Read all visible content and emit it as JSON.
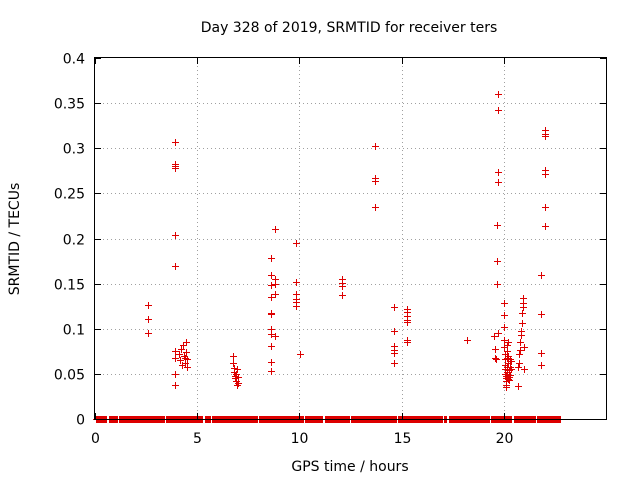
{
  "chart_data": {
    "type": "scatter",
    "title": "Day 328 of 2019, SRMTID for receiver ters",
    "xlabel": "GPS time / hours",
    "ylabel": "SRMTID / TECUs",
    "xlim": [
      0,
      25
    ],
    "ylim": [
      0,
      0.4
    ],
    "xticks": [
      0,
      5,
      10,
      15,
      20
    ],
    "xtick_labels": [
      "0",
      "5",
      "10",
      "15",
      "20"
    ],
    "yticks": [
      0,
      0.05,
      0.1,
      0.15,
      0.2,
      0.25,
      0.3,
      0.35,
      0.4
    ],
    "ytick_labels": [
      "0",
      "0.05",
      "0.1",
      "0.15",
      "0.2",
      "0.25",
      "0.3",
      "0.35",
      "0.4"
    ],
    "grid": true,
    "marker": "+",
    "series": [
      {
        "name": "SRMTID",
        "color": "#dd0000",
        "zero_baseline": {
          "x_start": 0.05,
          "x_end": 22.75,
          "step": 0.05,
          "gaps": [
            [
              0.6,
              0.65
            ],
            [
              5.3,
              5.35
            ],
            [
              11.15,
              11.2
            ],
            [
              17.2,
              17.25
            ],
            [
              20.4,
              20.45
            ]
          ]
        },
        "points": [
          [
            2.6,
            0.126
          ],
          [
            2.6,
            0.111
          ],
          [
            2.6,
            0.095
          ],
          [
            3.9,
            0.307
          ],
          [
            3.9,
            0.282
          ],
          [
            3.9,
            0.278
          ],
          [
            3.9,
            0.28
          ],
          [
            3.9,
            0.204
          ],
          [
            3.9,
            0.17
          ],
          [
            3.9,
            0.075
          ],
          [
            3.9,
            0.068
          ],
          [
            3.9,
            0.05
          ],
          [
            3.9,
            0.038
          ],
          [
            4.1,
            0.072
          ],
          [
            4.15,
            0.065
          ],
          [
            4.2,
            0.078
          ],
          [
            4.25,
            0.06
          ],
          [
            4.3,
            0.082
          ],
          [
            4.35,
            0.07
          ],
          [
            4.4,
            0.068
          ],
          [
            4.4,
            0.062
          ],
          [
            4.45,
            0.085
          ],
          [
            4.45,
            0.074
          ],
          [
            4.5,
            0.066
          ],
          [
            4.5,
            0.058
          ],
          [
            6.75,
            0.07
          ],
          [
            6.75,
            0.062
          ],
          [
            6.8,
            0.057
          ],
          [
            6.8,
            0.052
          ],
          [
            6.85,
            0.048
          ],
          [
            6.85,
            0.045
          ],
          [
            6.9,
            0.05
          ],
          [
            6.9,
            0.042
          ],
          [
            6.95,
            0.038
          ],
          [
            6.95,
            0.055
          ],
          [
            7.0,
            0.04
          ],
          [
            7.0,
            0.046
          ],
          [
            8.6,
            0.178
          ],
          [
            8.6,
            0.16
          ],
          [
            8.6,
            0.148
          ],
          [
            8.6,
            0.135
          ],
          [
            8.6,
            0.118
          ],
          [
            8.6,
            0.116
          ],
          [
            8.6,
            0.1
          ],
          [
            8.6,
            0.094
          ],
          [
            8.6,
            0.081
          ],
          [
            8.6,
            0.063
          ],
          [
            8.6,
            0.053
          ],
          [
            8.8,
            0.211
          ],
          [
            8.8,
            0.155
          ],
          [
            8.8,
            0.15
          ],
          [
            8.8,
            0.138
          ],
          [
            8.8,
            0.092
          ],
          [
            9.85,
            0.195
          ],
          [
            9.85,
            0.152
          ],
          [
            9.85,
            0.139
          ],
          [
            9.85,
            0.133
          ],
          [
            9.85,
            0.13
          ],
          [
            9.85,
            0.125
          ],
          [
            10.05,
            0.072
          ],
          [
            12.1,
            0.155
          ],
          [
            12.1,
            0.151
          ],
          [
            12.1,
            0.147
          ],
          [
            12.1,
            0.137
          ],
          [
            13.7,
            0.302
          ],
          [
            13.7,
            0.267
          ],
          [
            13.7,
            0.264
          ],
          [
            13.7,
            0.235
          ],
          [
            14.65,
            0.124
          ],
          [
            14.65,
            0.098
          ],
          [
            14.65,
            0.081
          ],
          [
            14.65,
            0.077
          ],
          [
            14.65,
            0.073
          ],
          [
            14.65,
            0.062
          ],
          [
            15.25,
            0.122
          ],
          [
            15.25,
            0.119
          ],
          [
            15.25,
            0.114
          ],
          [
            15.25,
            0.11
          ],
          [
            15.25,
            0.108
          ],
          [
            15.25,
            0.087
          ],
          [
            15.25,
            0.085
          ],
          [
            18.2,
            0.088
          ],
          [
            19.5,
            0.092
          ],
          [
            19.55,
            0.078
          ],
          [
            19.55,
            0.068
          ],
          [
            19.6,
            0.066
          ],
          [
            19.7,
            0.36
          ],
          [
            19.7,
            0.342
          ],
          [
            19.7,
            0.274
          ],
          [
            19.7,
            0.263
          ],
          [
            19.65,
            0.215
          ],
          [
            19.65,
            0.175
          ],
          [
            19.65,
            0.15
          ],
          [
            19.7,
            0.095
          ],
          [
            20.0,
            0.128
          ],
          [
            20.0,
            0.115
          ],
          [
            20.0,
            0.102
          ],
          [
            20.0,
            0.088
          ],
          [
            20.0,
            0.08
          ],
          [
            20.05,
            0.072
          ],
          [
            20.05,
            0.066
          ],
          [
            20.05,
            0.06
          ],
          [
            20.05,
            0.055
          ],
          [
            20.05,
            0.05
          ],
          [
            20.1,
            0.048
          ],
          [
            20.1,
            0.045
          ],
          [
            20.1,
            0.042
          ],
          [
            20.1,
            0.038
          ],
          [
            20.1,
            0.035
          ],
          [
            20.15,
            0.082
          ],
          [
            20.15,
            0.075
          ],
          [
            20.15,
            0.068
          ],
          [
            20.15,
            0.058
          ],
          [
            20.15,
            0.052
          ],
          [
            20.2,
            0.046
          ],
          [
            20.2,
            0.044
          ],
          [
            20.2,
            0.062
          ],
          [
            20.2,
            0.085
          ],
          [
            20.2,
            0.07
          ],
          [
            20.25,
            0.054
          ],
          [
            20.25,
            0.047
          ],
          [
            20.25,
            0.043
          ],
          [
            20.3,
            0.066
          ],
          [
            20.3,
            0.058
          ],
          [
            20.3,
            0.049
          ],
          [
            20.35,
            0.064
          ],
          [
            20.35,
            0.055
          ],
          [
            20.7,
            0.037
          ],
          [
            20.7,
            0.058
          ],
          [
            20.75,
            0.062
          ],
          [
            20.75,
            0.072
          ],
          [
            20.8,
            0.076
          ],
          [
            20.8,
            0.085
          ],
          [
            20.85,
            0.093
          ],
          [
            20.85,
            0.098
          ],
          [
            20.9,
            0.106
          ],
          [
            20.9,
            0.118
          ],
          [
            20.95,
            0.124
          ],
          [
            20.95,
            0.128
          ],
          [
            20.95,
            0.134
          ],
          [
            21.0,
            0.08
          ],
          [
            21.0,
            0.055
          ],
          [
            21.8,
            0.16
          ],
          [
            21.8,
            0.116
          ],
          [
            21.8,
            0.073
          ],
          [
            21.8,
            0.06
          ],
          [
            22.0,
            0.32
          ],
          [
            22.0,
            0.316
          ],
          [
            22.0,
            0.314
          ],
          [
            22.0,
            0.276
          ],
          [
            22.0,
            0.271
          ],
          [
            22.0,
            0.235
          ],
          [
            22.0,
            0.214
          ]
        ]
      }
    ]
  }
}
